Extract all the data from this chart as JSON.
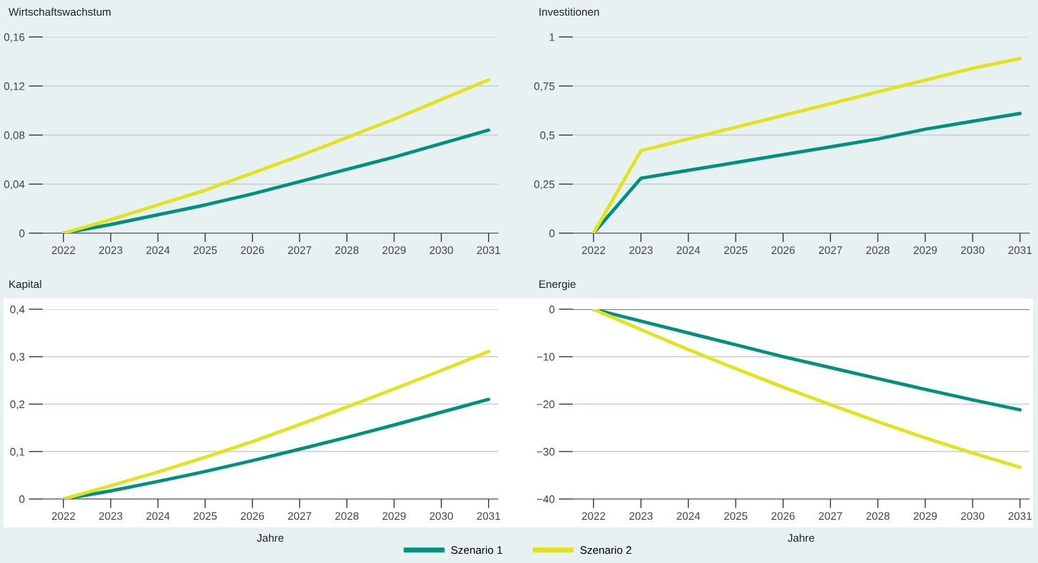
{
  "chart_data": [
    {
      "type": "line",
      "title": "Wirtschaftswachstum",
      "legend": "bottom",
      "x": [
        2022,
        2023,
        2024,
        2025,
        2026,
        2027,
        2028,
        2029,
        2030,
        2031
      ],
      "xlim": [
        2021.56,
        2031.2
      ],
      "xticks": [
        2022,
        2023,
        2024,
        2025,
        2026,
        2027,
        2028,
        2029,
        2030,
        2031
      ],
      "ylim": [
        0,
        0.16
      ],
      "yticks": [
        {
          "value": 0,
          "label": "0"
        },
        {
          "value": 0.04,
          "label": "0,04"
        },
        {
          "value": 0.08,
          "label": "0,08"
        },
        {
          "value": 0.12,
          "label": "0,12"
        },
        {
          "value": 0.16,
          "label": "0,16"
        }
      ],
      "grid": "y",
      "line_style": "solid",
      "series": [
        {
          "name": "Szenario 1",
          "color": "#00907f",
          "values": [
            0,
            0.007,
            0.015,
            0.023,
            0.032,
            0.042,
            0.052,
            0.062,
            0.073,
            0.084
          ]
        },
        {
          "name": "Szenario 2",
          "color": "#e2e31c",
          "values": [
            0,
            0.011,
            0.023,
            0.035,
            0.049,
            0.063,
            0.078,
            0.093,
            0.109,
            0.125
          ]
        }
      ]
    },
    {
      "type": "line",
      "title": "Investitionen",
      "x": [
        2022,
        2023,
        2024,
        2025,
        2026,
        2027,
        2028,
        2029,
        2030,
        2031
      ],
      "xlim": [
        2021.56,
        2031.2
      ],
      "xticks": [
        2022,
        2023,
        2024,
        2025,
        2026,
        2027,
        2028,
        2029,
        2030,
        2031
      ],
      "ylim": [
        0,
        1
      ],
      "yticks": [
        {
          "value": 0,
          "label": "0"
        },
        {
          "value": 0.25,
          "label": "0,25"
        },
        {
          "value": 0.5,
          "label": "0,5"
        },
        {
          "value": 0.75,
          "label": "0,75"
        },
        {
          "value": 1,
          "label": "1"
        }
      ],
      "grid": "y",
      "line_style": "solid",
      "series": [
        {
          "color": "#00907f",
          "values": [
            0,
            0.28,
            0.32,
            0.36,
            0.4,
            0.44,
            0.48,
            0.53,
            0.57,
            0.61
          ]
        },
        {
          "color": "#e2e31c",
          "values": [
            0,
            0.42,
            0.48,
            0.54,
            0.6,
            0.66,
            0.72,
            0.78,
            0.84,
            0.89
          ]
        }
      ]
    },
    {
      "type": "line",
      "title": "Kapital",
      "xlabel": "Jahre",
      "x": [
        2022,
        2023,
        2024,
        2025,
        2026,
        2027,
        2028,
        2029,
        2030,
        2031
      ],
      "xlim": [
        2021.56,
        2031.2
      ],
      "xticks": [
        2022,
        2023,
        2024,
        2025,
        2026,
        2027,
        2028,
        2029,
        2030,
        2031
      ],
      "ylim": [
        0,
        0.4
      ],
      "yticks": [
        {
          "value": 0,
          "label": "0"
        },
        {
          "value": 0.1,
          "label": "0,1"
        },
        {
          "value": 0.2,
          "label": "0,2"
        },
        {
          "value": 0.3,
          "label": "0,3"
        },
        {
          "value": 0.4,
          "label": "0,4"
        }
      ],
      "grid": "y",
      "line_style": "solid",
      "series": [
        {
          "color": "#00907f",
          "values": [
            0,
            0.017,
            0.037,
            0.058,
            0.081,
            0.105,
            0.13,
            0.156,
            0.183,
            0.21
          ]
        },
        {
          "color": "#e2e31c",
          "values": [
            0,
            0.028,
            0.057,
            0.088,
            0.121,
            0.157,
            0.194,
            0.232,
            0.271,
            0.311
          ]
        }
      ]
    },
    {
      "type": "line",
      "title": "Energie",
      "xlabel": "Jahre",
      "x": [
        2022,
        2023,
        2024,
        2025,
        2026,
        2027,
        2028,
        2029,
        2030,
        2031
      ],
      "xlim": [
        2021.56,
        2031.2
      ],
      "xticks": [
        2022,
        2023,
        2024,
        2025,
        2026,
        2027,
        2028,
        2029,
        2030,
        2031
      ],
      "ylim": [
        -40,
        0
      ],
      "yticks": [
        {
          "value": -40,
          "label": "−40"
        },
        {
          "value": -30,
          "label": "−30"
        },
        {
          "value": -20,
          "label": "−20"
        },
        {
          "value": -10,
          "label": "−10"
        },
        {
          "value": 0,
          "label": "0"
        }
      ],
      "grid": "y",
      "line_style": "solid",
      "ref_lines": [
        {
          "axis": "y",
          "value": 0,
          "color": "#555555"
        }
      ],
      "series": [
        {
          "color": "#00907f",
          "values": [
            0,
            -2.5,
            -5,
            -7.5,
            -10,
            -12.3,
            -14.6,
            -16.9,
            -19.1,
            -21.2
          ]
        },
        {
          "color": "#e2e31c",
          "values": [
            0,
            -4.3,
            -8.5,
            -12.5,
            -16.4,
            -20.1,
            -23.7,
            -27.1,
            -30.3,
            -33.3
          ]
        }
      ]
    }
  ]
}
